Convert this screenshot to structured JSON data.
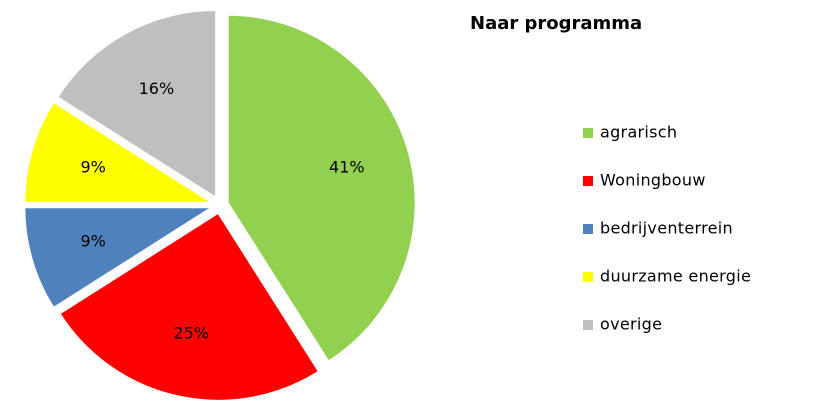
{
  "chart_data": {
    "type": "pie",
    "title": "Naar programma",
    "categories": [
      "agrarisch",
      "Woningbouw",
      "bedrijventerrein",
      "duurzame energie",
      "overige"
    ],
    "values": [
      41,
      25,
      9,
      9,
      16
    ],
    "value_labels": [
      "41%",
      "25%",
      "9%",
      "9%",
      "16%"
    ],
    "colors": [
      "#92d050",
      "#ff0000",
      "#4f81bd",
      "#ffff00",
      "#bfbfbf"
    ],
    "exploded": true
  }
}
